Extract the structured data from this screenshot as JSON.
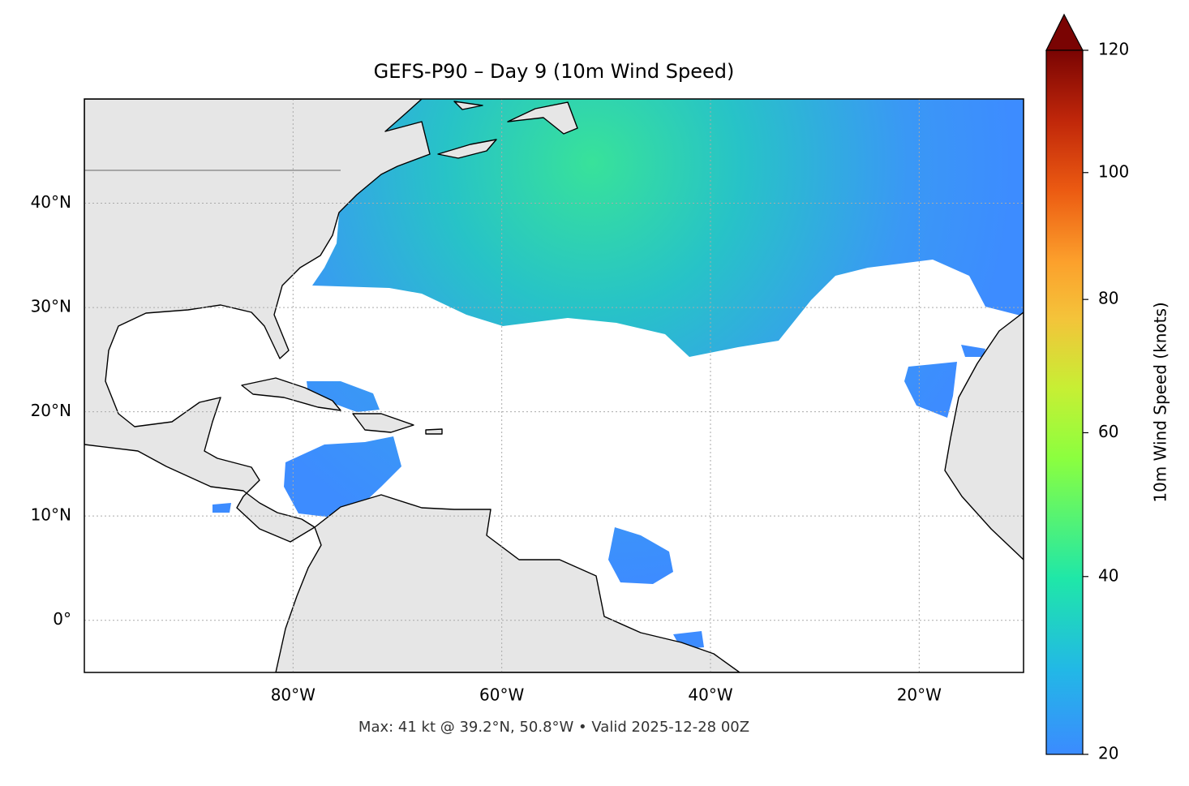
{
  "chart_data": {
    "type": "map",
    "title": "GEFS-P90 – Day 9 (10m Wind Speed)",
    "footer": "Max: 41 kt @ 39.2°N, 50.8°W • Valid 2025-12-28 00Z",
    "xlim": [
      -100,
      -10
    ],
    "ylim": [
      -5,
      50
    ],
    "xticks": [
      {
        "value": -80,
        "label": "80°W"
      },
      {
        "value": -60,
        "label": "60°W"
      },
      {
        "value": -40,
        "label": "40°W"
      },
      {
        "value": -20,
        "label": "20°W"
      }
    ],
    "yticks": [
      {
        "value": 0,
        "label": "0°"
      },
      {
        "value": 10,
        "label": "10°N"
      },
      {
        "value": 20,
        "label": "20°N"
      },
      {
        "value": 30,
        "label": "30°N"
      },
      {
        "value": 40,
        "label": "40°N"
      }
    ],
    "grid": true,
    "colorbar": {
      "label": "10m Wind Speed (knots)",
      "lim": [
        20,
        120
      ],
      "ticks": [
        20,
        40,
        60,
        80,
        100,
        120
      ]
    }
  }
}
